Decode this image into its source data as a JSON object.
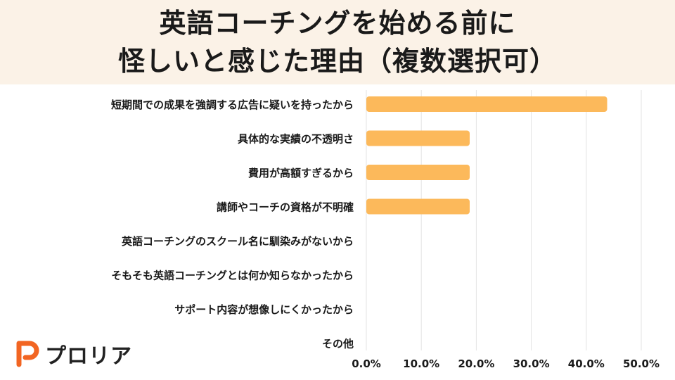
{
  "header": {
    "title_line1": "英語コーチングを始める前に",
    "title_line2": "怪しいと感じた理由（複数選択可）"
  },
  "brand": {
    "name": "プロリア",
    "logo_color": "#f26522"
  },
  "colors": {
    "bar": "#fcb95b",
    "grid": "#e3e3e3",
    "background": "#fbf2e7"
  },
  "chart_data": {
    "type": "bar",
    "orientation": "horizontal",
    "title": "英語コーチングを始める前に怪しいと感じた理由（複数選択可）",
    "categories": [
      "短期間での成果を強調する広告に疑いを持ったから",
      "具体的な実績の不透明さ",
      "費用が高額すぎるから",
      "講師やコーチの資格が不明確",
      "英語コーチングのスクール名に馴染みがないから",
      "そもそも英語コーチングとは何か知らなかったから",
      "サポート内容が想像しにくかったから",
      "その他"
    ],
    "values": [
      43.8,
      18.8,
      18.8,
      18.8,
      0,
      0,
      0,
      0
    ],
    "xlim": [
      0,
      50
    ],
    "xticks": [
      "0.0%",
      "10.0%",
      "20.0%",
      "30.0%",
      "40.0%",
      "50.0%"
    ],
    "tick_values": [
      0,
      10,
      20,
      30,
      40,
      50
    ],
    "grid": true,
    "legend": "none"
  }
}
